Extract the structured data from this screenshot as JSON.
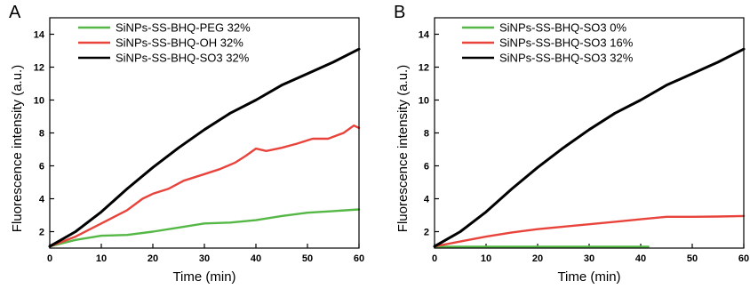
{
  "chart_data": [
    {
      "type": "line",
      "panel_label": "A",
      "xlabel": "Time (min)",
      "ylabel": "Fluorescence intensity (a.u.)",
      "xlim": [
        0,
        60
      ],
      "ylim": [
        1,
        15
      ],
      "x_ticks": [
        0,
        10,
        20,
        30,
        40,
        50,
        60
      ],
      "y_ticks": [
        2,
        4,
        6,
        8,
        10,
        12,
        14
      ],
      "grid": false,
      "legend_position": "top-left",
      "series": [
        {
          "name": "SiNPs-SS-BHQ-PEG 32%",
          "color": "#55b846",
          "x": [
            0,
            5,
            10,
            15,
            20,
            25,
            30,
            35,
            40,
            45,
            50,
            55,
            60
          ],
          "y": [
            1.1,
            1.5,
            1.75,
            1.8,
            2.0,
            2.25,
            2.5,
            2.55,
            2.7,
            2.95,
            3.15,
            3.25,
            3.35
          ]
        },
        {
          "name": "SiNPs-SS-BHQ-OH 32%",
          "color": "#e8443c",
          "x": [
            0,
            5,
            10,
            15,
            18,
            20,
            23,
            26,
            30,
            33,
            36,
            38,
            40,
            42,
            45,
            48,
            51,
            54,
            57,
            59,
            60
          ],
          "y": [
            1.1,
            1.7,
            2.5,
            3.3,
            4.0,
            4.3,
            4.6,
            5.1,
            5.5,
            5.8,
            6.2,
            6.6,
            7.05,
            6.9,
            7.1,
            7.35,
            7.65,
            7.65,
            8.0,
            8.45,
            8.3
          ]
        },
        {
          "name": "SiNPs-SS-BHQ-SO3 32%",
          "color": "#000000",
          "x": [
            0,
            5,
            10,
            15,
            20,
            25,
            30,
            35,
            40,
            45,
            50,
            55,
            60
          ],
          "y": [
            1.1,
            2.0,
            3.2,
            4.6,
            5.9,
            7.1,
            8.2,
            9.2,
            10.0,
            10.9,
            11.6,
            12.3,
            13.1
          ]
        }
      ]
    },
    {
      "type": "line",
      "panel_label": "B",
      "xlabel": "Time (min)",
      "ylabel": "Fluorescence intensity (a.u.)",
      "xlim": [
        0,
        60
      ],
      "ylim": [
        1,
        15
      ],
      "x_ticks": [
        0,
        10,
        20,
        30,
        40,
        50,
        60
      ],
      "y_ticks": [
        2,
        4,
        6,
        8,
        10,
        12,
        14
      ],
      "grid": false,
      "legend_position": "top-left",
      "series": [
        {
          "name": "SiNPs-SS-BHQ-SO3 0%",
          "color": "#55b846",
          "x": [
            0,
            10,
            20,
            30,
            41.5
          ],
          "y": [
            1.08,
            1.08,
            1.08,
            1.08,
            1.08
          ]
        },
        {
          "name": "SiNPs-SS-BHQ-SO3 16%",
          "color": "#e8443c",
          "x": [
            0,
            5,
            10,
            15,
            20,
            25,
            30,
            35,
            40,
            45,
            50,
            55,
            60
          ],
          "y": [
            1.1,
            1.4,
            1.7,
            1.95,
            2.15,
            2.3,
            2.45,
            2.6,
            2.75,
            2.9,
            2.9,
            2.92,
            2.95
          ]
        },
        {
          "name": "SiNPs-SS-BHQ-SO3 32%",
          "color": "#000000",
          "x": [
            0,
            5,
            10,
            15,
            20,
            25,
            30,
            35,
            40,
            45,
            50,
            55,
            60
          ],
          "y": [
            1.1,
            2.0,
            3.2,
            4.6,
            5.9,
            7.1,
            8.2,
            9.2,
            10.0,
            10.9,
            11.6,
            12.3,
            13.1
          ]
        }
      ]
    }
  ]
}
